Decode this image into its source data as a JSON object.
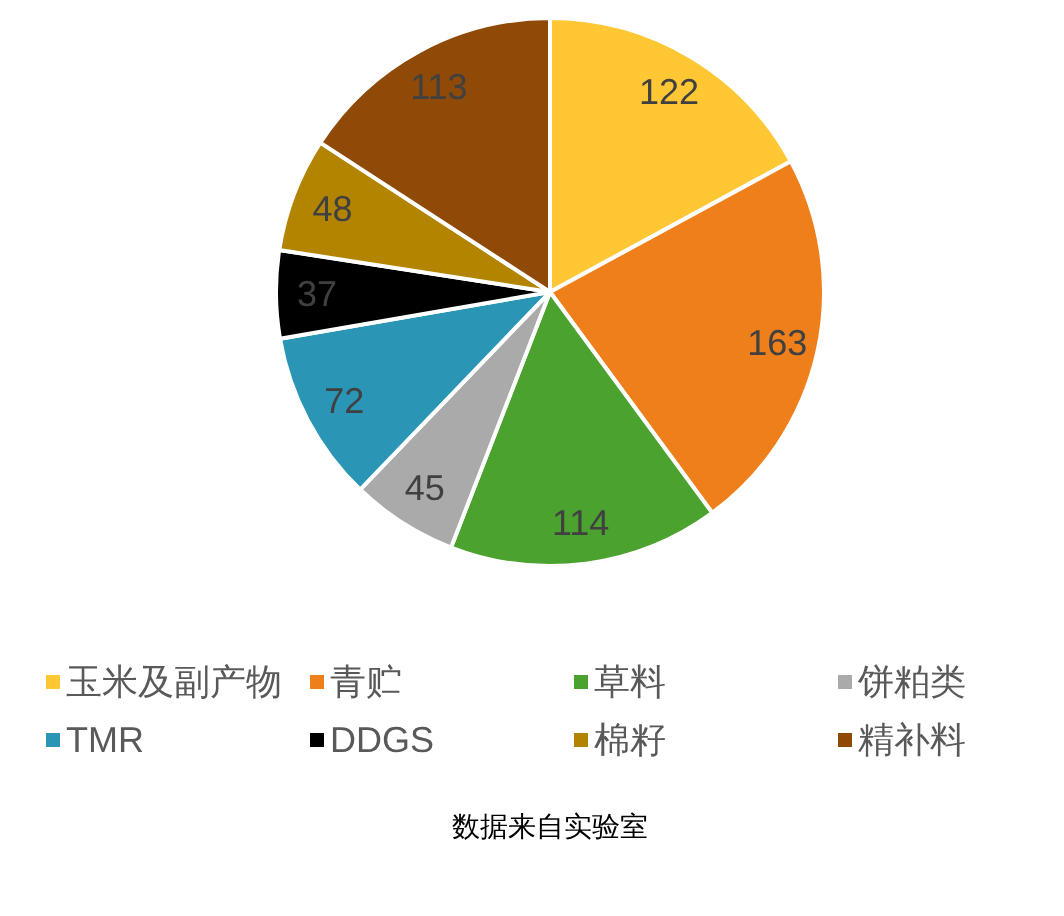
{
  "chart_data": {
    "type": "pie",
    "categories": [
      "玉米及副产物",
      "青贮",
      "草料",
      "饼粕类",
      "TMR",
      "DDGS",
      "棉籽",
      "精补料"
    ],
    "values": [
      122,
      163,
      114,
      45,
      72,
      37,
      48,
      113
    ],
    "colors": [
      "#ffc734",
      "#ef7f1a",
      "#4ca22f",
      "#aaaaaa",
      "#2a95b5",
      "#000000",
      "#b38400",
      "#8f4a08"
    ],
    "data_labels": true,
    "legend": "bottom",
    "annotations": [
      "数据来自实验室"
    ]
  }
}
